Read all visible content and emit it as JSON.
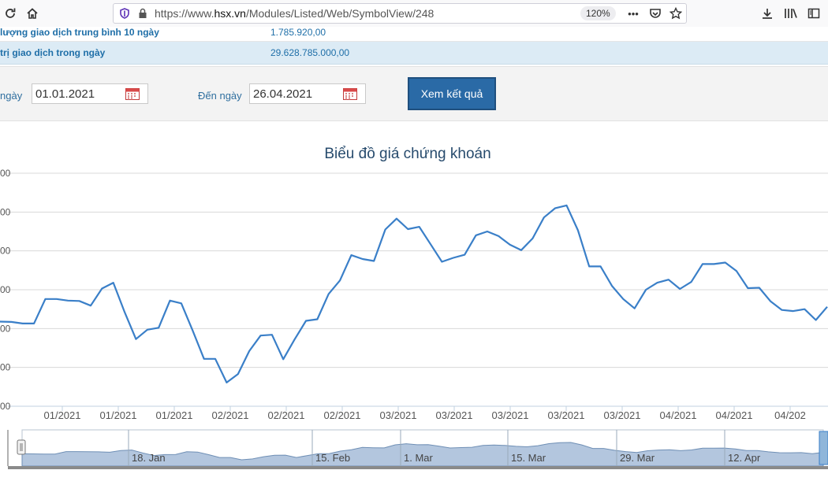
{
  "browser": {
    "url_prefix": "https://www.",
    "url_host": "hsx.vn",
    "url_path": "/Modules/Listed/Web/SymbolView/248",
    "zoom": "120%",
    "menu_dots": "•••"
  },
  "info": {
    "row1_label": "lượng giao dịch trung bình 10 ngày",
    "row1_value": "1.785.920,00",
    "row2_label": "trị giao dịch trong ngày",
    "row2_value": "29.628.785.000,00"
  },
  "filter": {
    "from_label": "ngày",
    "from_value": "01.01.2021",
    "to_label": "Đến ngày",
    "to_value": "26.04.2021",
    "submit_label": "Xem kết quả"
  },
  "chart_data": {
    "type": "line",
    "title": "Biểu đồ giá chứng khoán",
    "y_tick_labels": [
      "00",
      "00",
      "00",
      "00",
      "00",
      "00",
      "00"
    ],
    "x_tick_labels": [
      "01/2021",
      "01/2021",
      "01/2021",
      "02/2021",
      "02/2021",
      "02/2021",
      "03/2021",
      "03/2021",
      "03/2021",
      "03/2021",
      "03/2021",
      "04/2021",
      "04/2021",
      "04/202"
    ],
    "navigator_labels": [
      "18. Jan",
      "15. Feb",
      "1. Mar",
      "15. Mar",
      "29. Mar",
      "12. Apr"
    ],
    "series_color": "#3a7fc8",
    "values": [
      2.18,
      2.17,
      2.13,
      2.13,
      2.76,
      2.76,
      2.72,
      2.71,
      2.59,
      3.03,
      3.18,
      2.42,
      1.73,
      1.97,
      2.02,
      2.72,
      2.65,
      1.95,
      1.22,
      1.22,
      0.61,
      0.83,
      1.42,
      1.82,
      1.84,
      1.21,
      1.72,
      2.2,
      2.24,
      2.89,
      3.24,
      3.89,
      3.79,
      3.74,
      4.55,
      4.83,
      4.56,
      4.62,
      4.17,
      3.72,
      3.82,
      3.9,
      4.4,
      4.5,
      4.38,
      4.16,
      4.02,
      4.32,
      4.86,
      5.1,
      5.17,
      4.53,
      3.6,
      3.6,
      3.1,
      2.76,
      2.52,
      3.0,
      3.18,
      3.26,
      3.02,
      3.2,
      3.66,
      3.66,
      3.7,
      3.48,
      3.04,
      3.05,
      2.7,
      2.48,
      2.45,
      2.5,
      2.22,
      2.56
    ]
  }
}
